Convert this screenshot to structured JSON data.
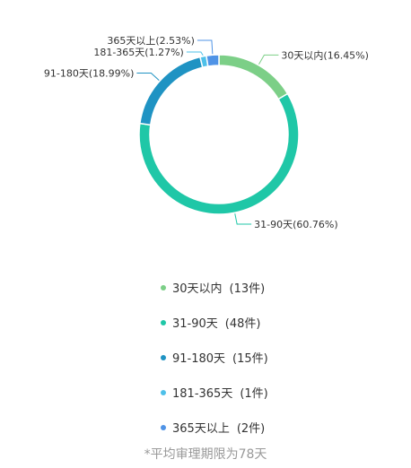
{
  "chart_data": {
    "type": "pie",
    "donut": true,
    "slices": [
      {
        "label": "30天以内",
        "value": 13,
        "percent": "16.45%",
        "color": "#7ccf87",
        "count_label": "(13件)"
      },
      {
        "label": "31-90天",
        "value": 48,
        "percent": "60.76%",
        "color": "#1fc7a7",
        "count_label": "(48件)"
      },
      {
        "label": "91-180天",
        "value": 15,
        "percent": "18.99%",
        "color": "#1f93c3",
        "count_label": "(15件)"
      },
      {
        "label": "181-365天",
        "value": 1,
        "percent": "1.27%",
        "color": "#4ec0e9",
        "count_label": "(1件)"
      },
      {
        "label": "365天以上",
        "value": 2,
        "percent": "2.53%",
        "color": "#4f93e6",
        "count_label": "(2件)"
      }
    ],
    "legend_placement": "bottom"
  },
  "footnote": "*平均审理期限为78天"
}
